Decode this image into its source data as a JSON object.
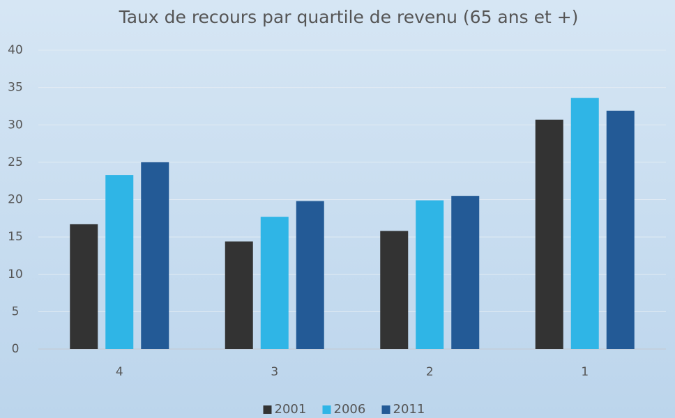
{
  "chart_data": {
    "type": "bar",
    "title": "Taux de recours par quartile de revenu (65 ans et +)",
    "categories": [
      "4",
      "3",
      "2",
      "1"
    ],
    "series": [
      {
        "name": "2001",
        "color": "#333333",
        "values": [
          16.7,
          14.4,
          15.8,
          30.7
        ]
      },
      {
        "name": "2006",
        "color": "#2fb5e6",
        "values": [
          23.3,
          17.7,
          19.9,
          33.6
        ]
      },
      {
        "name": "2011",
        "color": "#235a96",
        "values": [
          25.0,
          19.8,
          20.5,
          31.9
        ]
      }
    ],
    "ylim": [
      0,
      40
    ],
    "yticks": [
      0,
      5,
      10,
      15,
      20,
      25,
      30,
      35,
      40
    ],
    "grid": true,
    "legend": "bottom"
  }
}
